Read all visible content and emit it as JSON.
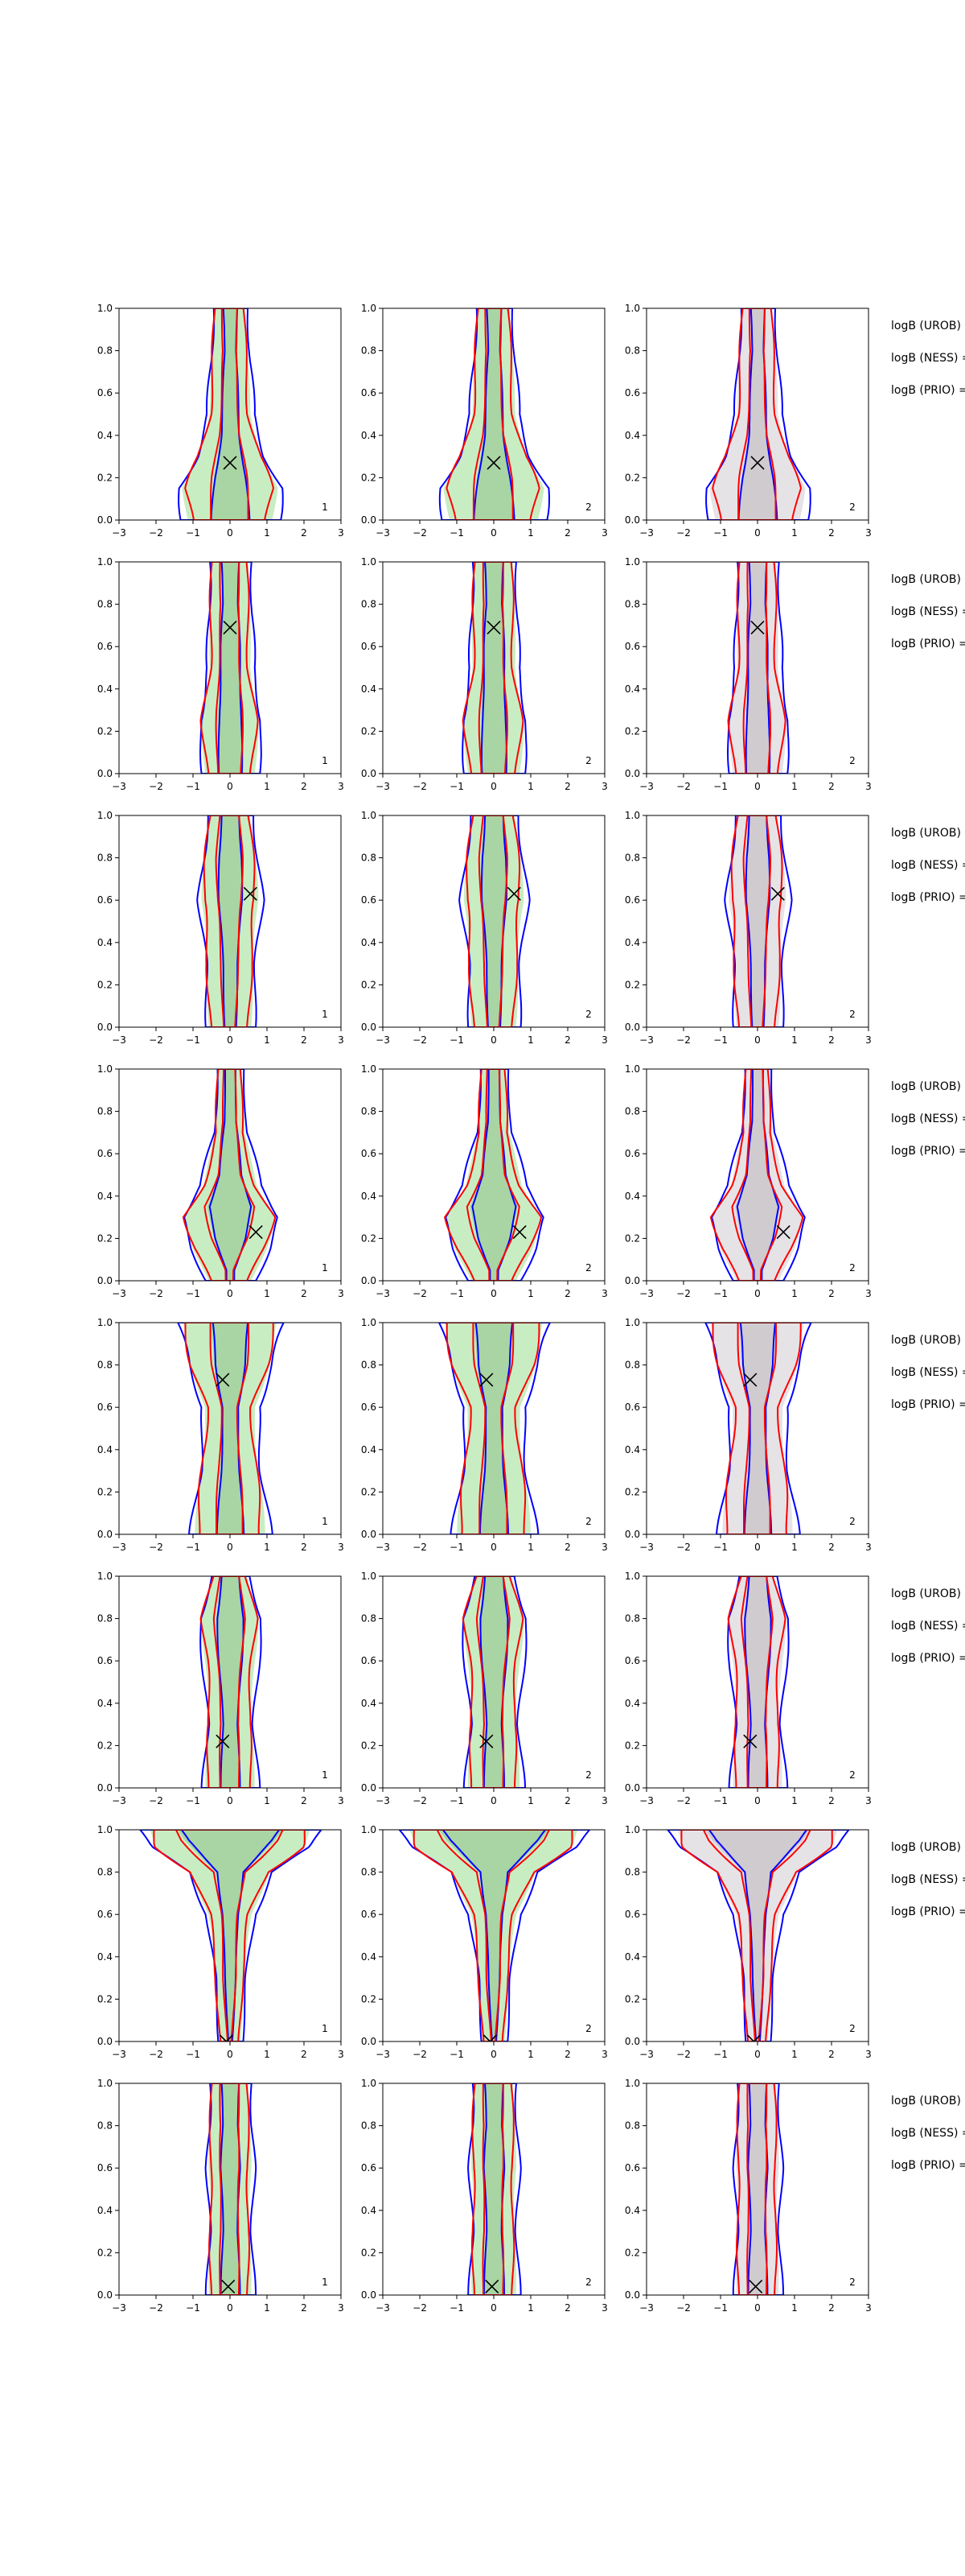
{
  "figure": {
    "x_tick_labels": [
      "−3",
      "−2",
      "−1",
      "0",
      "1",
      "2",
      "3"
    ],
    "y_tick_labels": [
      "0.0",
      "0.2",
      "0.4",
      "0.6",
      "0.8",
      "1.0"
    ],
    "xlim": [
      -3,
      3
    ],
    "ylim": [
      0,
      1
    ],
    "column_corner_labels": [
      "1",
      "2",
      "2"
    ],
    "side_labels": [
      "logB (UROB) =",
      "logB (NESS) =",
      "logB (PRIO) ="
    ],
    "colors": {
      "blue_contour": "#0000ff",
      "red_contour": "#ff0000",
      "green_fill": "#c9edc3",
      "green_fill_dark": "#a9d4a3",
      "grey_fill": "#e6e3e6",
      "grey_fill_dark": "#cfcbcf",
      "marker": "#000000"
    }
  },
  "chart_data": {
    "type": "contour",
    "description_of_panels": "8 rows x 3 columns of density-contour panels; each panel has an X marker at a true value",
    "rows": [
      {
        "row": 1,
        "marker": {
          "x": 0.0,
          "y": 0.27
        },
        "corner": [
          "1",
          "2",
          "2"
        ]
      },
      {
        "row": 2,
        "marker": {
          "x": 0.0,
          "y": 0.69
        },
        "corner": [
          "1",
          "2",
          "2"
        ]
      },
      {
        "row": 3,
        "marker": {
          "x": 0.55,
          "y": 0.63
        },
        "corner": [
          "1",
          "2",
          "2"
        ]
      },
      {
        "row": 4,
        "marker": {
          "x": 0.7,
          "y": 0.23
        },
        "corner": [
          "1",
          "2",
          "2"
        ]
      },
      {
        "row": 5,
        "marker": {
          "x": -0.2,
          "y": 0.73
        },
        "corner": [
          "1",
          "2",
          "2"
        ]
      },
      {
        "row": 6,
        "marker": {
          "x": -0.2,
          "y": 0.22
        },
        "corner": [
          "1",
          "2",
          "2"
        ]
      },
      {
        "row": 7,
        "marker": {
          "x": -0.1,
          "y": 0.0
        },
        "corner": [
          "1",
          "2",
          "2"
        ]
      },
      {
        "row": 8,
        "marker": {
          "x": -0.05,
          "y": 0.04
        },
        "corner": [
          "1",
          "2",
          "2"
        ]
      }
    ],
    "shapes": [
      {
        "widths": [
          [
            0.0,
            1.2
          ],
          [
            0.15,
            1.3
          ],
          [
            0.3,
            0.9
          ],
          [
            0.5,
            0.6
          ],
          [
            0.75,
            0.5
          ],
          [
            1.0,
            0.45
          ]
        ],
        "inner": [
          [
            0.0,
            0.5
          ],
          [
            0.2,
            0.4
          ],
          [
            0.4,
            0.25
          ],
          [
            0.6,
            0.2
          ],
          [
            0.8,
            0.15
          ],
          [
            1.0,
            0.2
          ]
        ]
      },
      {
        "widths": [
          [
            0.0,
            0.7
          ],
          [
            0.25,
            0.8
          ],
          [
            0.5,
            0.6
          ],
          [
            0.75,
            0.55
          ],
          [
            1.0,
            0.55
          ]
        ],
        "inner": [
          [
            0.0,
            0.3
          ],
          [
            0.3,
            0.3
          ],
          [
            0.6,
            0.25
          ],
          [
            0.8,
            0.2
          ],
          [
            1.0,
            0.25
          ]
        ]
      },
      {
        "widths": [
          [
            0.0,
            0.6
          ],
          [
            0.3,
            0.65
          ],
          [
            0.6,
            0.8
          ],
          [
            0.8,
            0.7
          ],
          [
            1.0,
            0.6
          ]
        ],
        "inner": [
          [
            0.0,
            0.15
          ],
          [
            0.3,
            0.2
          ],
          [
            0.6,
            0.3
          ],
          [
            0.8,
            0.3
          ],
          [
            1.0,
            0.25
          ]
        ]
      },
      {
        "widths": [
          [
            0.0,
            0.6
          ],
          [
            0.15,
            1.0
          ],
          [
            0.3,
            1.3
          ],
          [
            0.45,
            0.8
          ],
          [
            0.7,
            0.4
          ],
          [
            1.0,
            0.35
          ]
        ],
        "inner": [
          [
            0.05,
            0.1
          ],
          [
            0.2,
            0.4
          ],
          [
            0.35,
            0.6
          ],
          [
            0.5,
            0.3
          ],
          [
            0.75,
            0.15
          ],
          [
            1.0,
            0.15
          ]
        ]
      },
      {
        "widths": [
          [
            0.0,
            1.0
          ],
          [
            0.3,
            0.8
          ],
          [
            0.6,
            0.7
          ],
          [
            0.8,
            1.1
          ],
          [
            1.0,
            1.4
          ]
        ],
        "inner": [
          [
            0.0,
            0.35
          ],
          [
            0.3,
            0.25
          ],
          [
            0.6,
            0.2
          ],
          [
            0.8,
            0.4
          ],
          [
            1.0,
            0.5
          ]
        ]
      },
      {
        "widths": [
          [
            0.0,
            0.7
          ],
          [
            0.3,
            0.6
          ],
          [
            0.6,
            0.7
          ],
          [
            0.8,
            0.8
          ],
          [
            1.0,
            0.5
          ]
        ],
        "inner": [
          [
            0.0,
            0.25
          ],
          [
            0.3,
            0.2
          ],
          [
            0.6,
            0.3
          ],
          [
            0.8,
            0.35
          ],
          [
            1.0,
            0.25
          ]
        ]
      },
      {
        "widths": [
          [
            0.0,
            0.3
          ],
          [
            0.3,
            0.4
          ],
          [
            0.6,
            0.6
          ],
          [
            0.8,
            1.1
          ],
          [
            0.92,
            2.2
          ],
          [
            1.0,
            2.4
          ]
        ],
        "inner": [
          [
            0.0,
            0.05
          ],
          [
            0.3,
            0.15
          ],
          [
            0.6,
            0.2
          ],
          [
            0.8,
            0.35
          ],
          [
            0.95,
            1.2
          ],
          [
            1.0,
            1.4
          ]
        ]
      },
      {
        "widths": [
          [
            0.0,
            0.6
          ],
          [
            0.3,
            0.55
          ],
          [
            0.6,
            0.6
          ],
          [
            0.8,
            0.55
          ],
          [
            1.0,
            0.55
          ]
        ],
        "inner": [
          [
            0.0,
            0.25
          ],
          [
            0.3,
            0.2
          ],
          [
            0.6,
            0.25
          ],
          [
            0.8,
            0.2
          ],
          [
            1.0,
            0.25
          ]
        ]
      }
    ]
  }
}
